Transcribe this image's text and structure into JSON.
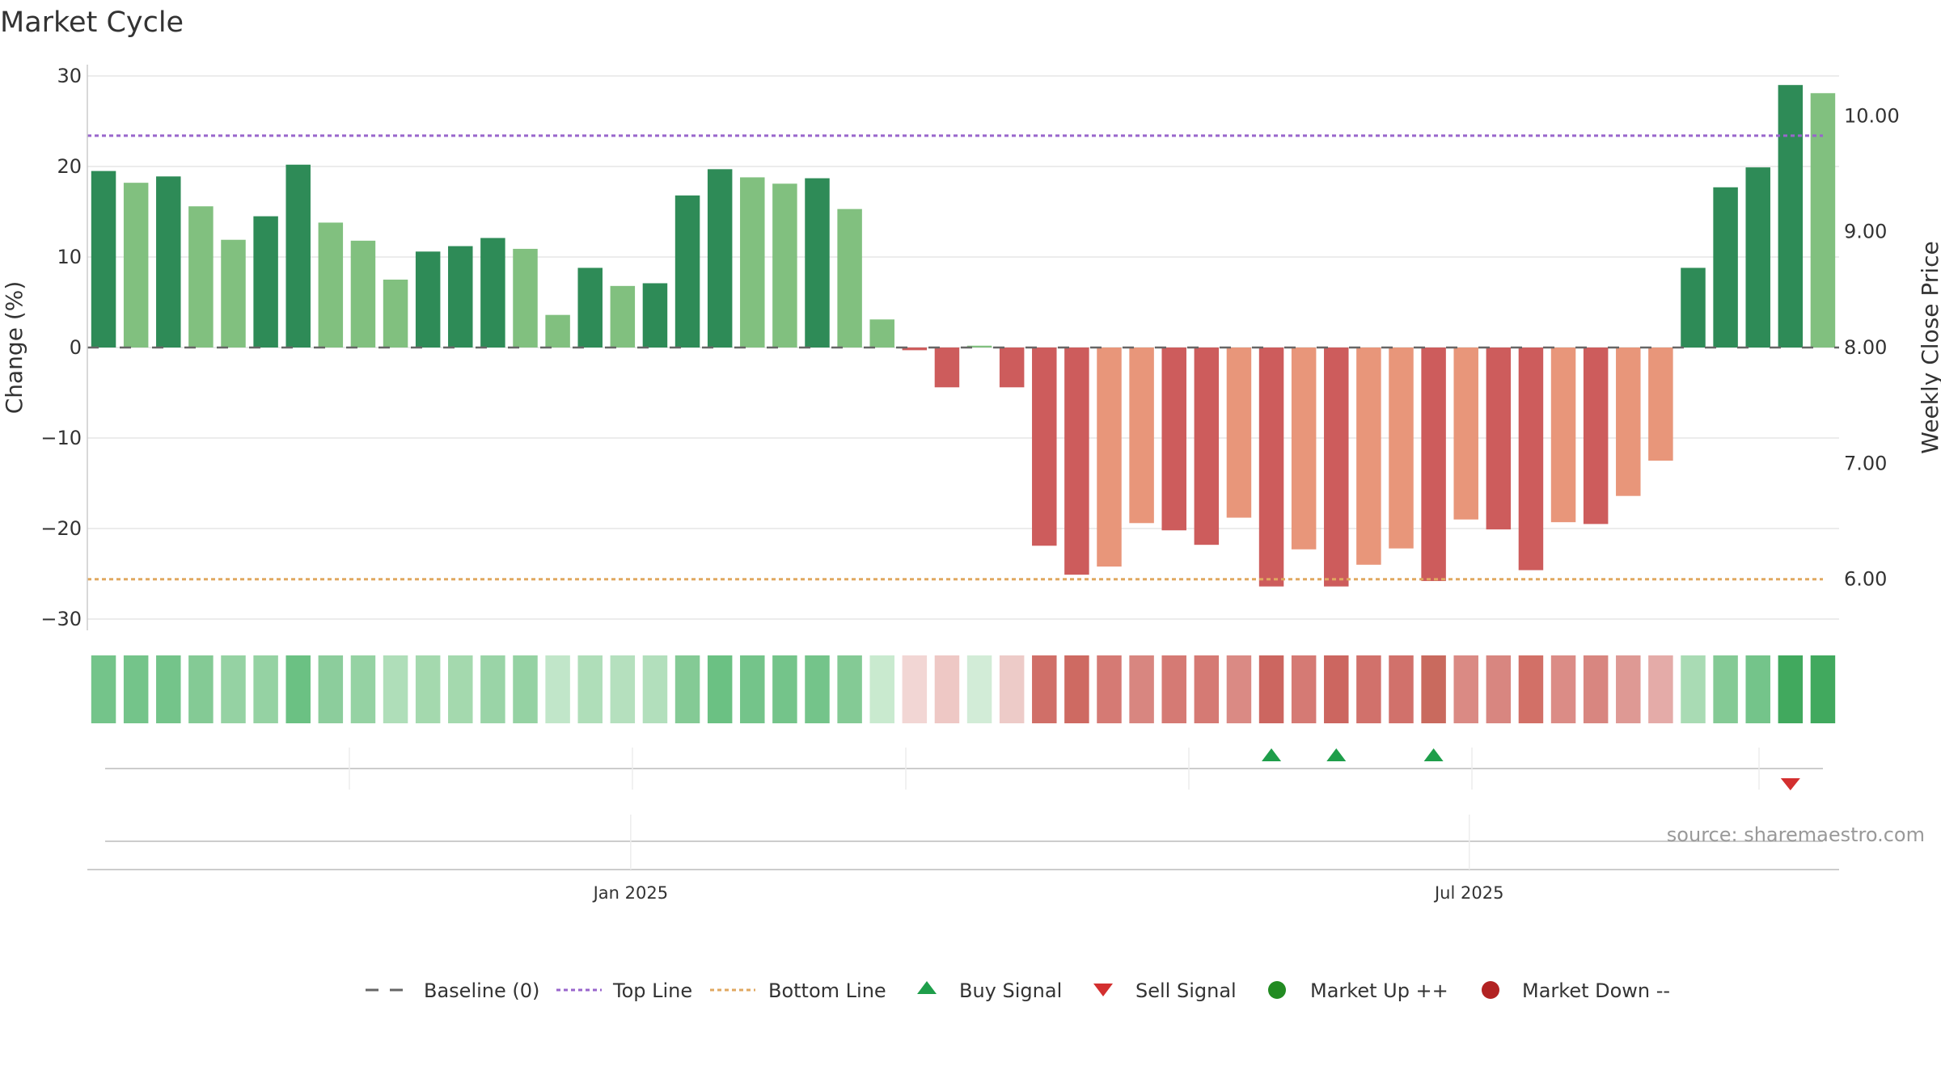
{
  "chart_data": {
    "type": "bar",
    "title": "Market Cycle",
    "ylabel": "Change (%)",
    "y2label": "Weekly Close Price",
    "ylim": [
      -31,
      31
    ],
    "y2lim": [
      5.66,
      10.34
    ],
    "yticks": [
      30,
      20,
      10,
      0,
      -10,
      -20,
      -30
    ],
    "ytick_labels": [
      "30",
      "20",
      "10",
      "0",
      "−10",
      "−20",
      "−30"
    ],
    "y2ticks": [
      10,
      9,
      8,
      7,
      6
    ],
    "y2tick_labels": [
      "10.00",
      "9.00",
      "8.00",
      "7.00",
      "6.00"
    ],
    "x_labels": [
      {
        "index": 16.75,
        "label": "Jan 2025"
      },
      {
        "index": 42.6,
        "label": "Jul 2025"
      }
    ],
    "values": [
      19.5,
      18.2,
      18.9,
      15.6,
      11.9,
      14.5,
      20.2,
      13.8,
      11.8,
      7.5,
      10.6,
      11.2,
      12.1,
      10.9,
      3.6,
      8.8,
      6.8,
      7.1,
      16.8,
      19.7,
      18.8,
      18.1,
      18.7,
      15.3,
      3.1,
      -0.3,
      -4.4,
      0.2,
      -4.4,
      -21.9,
      -25.1,
      -24.2,
      -19.4,
      -20.2,
      -21.8,
      -18.8,
      -26.4,
      -22.3,
      -26.4,
      -24.0,
      -22.2,
      -25.8,
      -19.0,
      -20.1,
      -24.6,
      -19.3,
      -19.5,
      -16.4,
      -12.5,
      8.8,
      17.7,
      19.9,
      29.0,
      28.1
    ],
    "shade": [
      "d",
      "l",
      "d",
      "l",
      "l",
      "d",
      "d",
      "l",
      "l",
      "l",
      "d",
      "d",
      "d",
      "l",
      "l",
      "d",
      "l",
      "d",
      "d",
      "d",
      "l",
      "l",
      "d",
      "l",
      "l",
      "d",
      "d",
      "l",
      "d",
      "d",
      "d",
      "l",
      "l",
      "d",
      "d",
      "l",
      "d",
      "l",
      "d",
      "l",
      "l",
      "d",
      "l",
      "d",
      "d",
      "l",
      "d",
      "l",
      "l",
      "d",
      "d",
      "d",
      "d",
      "l"
    ],
    "strip_colors": [
      "#74c48a",
      "#74c48a",
      "#74c48a",
      "#84ca95",
      "#95d2a3",
      "#95d2a3",
      "#6bc183",
      "#8ccd9c",
      "#95d2a3",
      "#afdeb9",
      "#a4d9ae",
      "#a4d9ae",
      "#9ad4a7",
      "#95d2a3",
      "#c1e6c9",
      "#afdeb9",
      "#b5e0be",
      "#b2dfbc",
      "#84ca95",
      "#6bc183",
      "#74c48a",
      "#74c48a",
      "#74c48a",
      "#84ca95",
      "#c9eacf",
      "#f2d6d4",
      "#eec8c5",
      "#d2ecd7",
      "#edcbc8",
      "#d06f68",
      "#ce6a62",
      "#d57a74",
      "#d88680",
      "#d57a74",
      "#d57a74",
      "#da8a84",
      "#cc6660",
      "#d57a74",
      "#cc6660",
      "#d1716b",
      "#d1716b",
      "#c96a5e",
      "#da8a84",
      "#d88680",
      "#d27067",
      "#db8c86",
      "#d88680",
      "#de9994",
      "#e4aba8",
      "#a9dbb4",
      "#84ca95",
      "#74c48a",
      "#41a95e",
      "#41a95e"
    ],
    "top_line": 23.4,
    "bottom_line": -25.6,
    "baseline": 0,
    "buy_signals": [
      36,
      38,
      41
    ],
    "sell_signals": [
      52
    ],
    "legend": {
      "baseline": "Baseline (0)",
      "top_line": "Top Line",
      "bottom_line": "Bottom Line",
      "buy": "Buy Signal",
      "sell": "Sell Signal",
      "market_up": "Market Up ++",
      "market_down": "Market Down --"
    },
    "source": "source: sharemaestro.com",
    "colors": {
      "pos_dark": "#2e8b57",
      "pos_light": "#81c07f",
      "neg_dark": "#cd5c5c",
      "neg_light": "#e8967a",
      "top_line": "#9966cc",
      "bottom_line": "#e0a860",
      "buy": "#1e9e4a",
      "sell": "#d32f2f",
      "market_up": "#228b22",
      "market_down": "#b22222",
      "baseline": "#666666",
      "grid": "#e6e6e6"
    }
  }
}
